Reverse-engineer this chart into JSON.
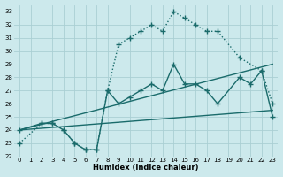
{
  "xlabel": "Humidex (Indice chaleur)",
  "background_color": "#cce9ec",
  "grid_color": "#aacfd4",
  "line_color": "#1a6b6b",
  "xlim": [
    -0.5,
    23.5
  ],
  "ylim": [
    22,
    33.5
  ],
  "xticks": [
    0,
    1,
    2,
    3,
    4,
    5,
    6,
    7,
    8,
    9,
    10,
    11,
    12,
    13,
    14,
    15,
    16,
    17,
    18,
    19,
    20,
    21,
    22,
    23
  ],
  "yticks": [
    22,
    23,
    24,
    25,
    26,
    27,
    28,
    29,
    30,
    31,
    32,
    33
  ],
  "series": [
    {
      "x": [
        0,
        2,
        3,
        4,
        5,
        6,
        7,
        8,
        9,
        10,
        11,
        12,
        13,
        14,
        15,
        16,
        17,
        18,
        20,
        22,
        23
      ],
      "y": [
        23.0,
        24.5,
        24.5,
        24.0,
        23.0,
        22.5,
        22.5,
        27.0,
        30.5,
        31.0,
        31.5,
        32.0,
        31.5,
        33.0,
        32.5,
        32.0,
        31.5,
        31.5,
        29.5,
        28.5,
        26.0
      ],
      "linestyle": "dotted",
      "marker": "+",
      "markersize": 4,
      "linewidth": 1.0
    },
    {
      "x": [
        0,
        2,
        3,
        4,
        5,
        6,
        7,
        8,
        9,
        10,
        11,
        12,
        13,
        14,
        15,
        16,
        17,
        18,
        20,
        21,
        22,
        23
      ],
      "y": [
        24.0,
        24.5,
        24.5,
        24.0,
        23.0,
        22.5,
        22.5,
        27.0,
        26.0,
        26.5,
        27.0,
        27.5,
        27.0,
        29.0,
        27.5,
        27.5,
        27.0,
        26.0,
        28.0,
        27.5,
        28.5,
        25.0
      ],
      "linestyle": "solid",
      "marker": "+",
      "markersize": 4,
      "linewidth": 1.0
    },
    {
      "x": [
        0,
        23
      ],
      "y": [
        24.0,
        29.0
      ],
      "linestyle": "solid",
      "marker": null,
      "markersize": 0,
      "linewidth": 1.0
    },
    {
      "x": [
        0,
        23
      ],
      "y": [
        24.0,
        25.5
      ],
      "linestyle": "solid",
      "marker": null,
      "markersize": 0,
      "linewidth": 1.0
    }
  ]
}
